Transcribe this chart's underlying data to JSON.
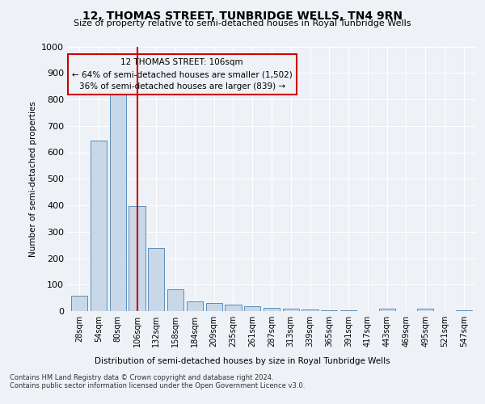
{
  "title": "12, THOMAS STREET, TUNBRIDGE WELLS, TN4 9RN",
  "subtitle": "Size of property relative to semi-detached houses in Royal Tunbridge Wells",
  "xlabel": "Distribution of semi-detached houses by size in Royal Tunbridge Wells",
  "ylabel": "Number of semi-detached properties",
  "footer_line1": "Contains HM Land Registry data © Crown copyright and database right 2024.",
  "footer_line2": "Contains public sector information licensed under the Open Government Licence v3.0.",
  "categories": [
    "28sqm",
    "54sqm",
    "80sqm",
    "106sqm",
    "132sqm",
    "158sqm",
    "184sqm",
    "209sqm",
    "235sqm",
    "261sqm",
    "287sqm",
    "313sqm",
    "339sqm",
    "365sqm",
    "391sqm",
    "417sqm",
    "443sqm",
    "469sqm",
    "495sqm",
    "521sqm",
    "547sqm"
  ],
  "values": [
    57,
    645,
    822,
    397,
    238,
    83,
    37,
    32,
    23,
    17,
    11,
    8,
    7,
    4,
    2,
    0,
    10,
    1,
    10,
    0,
    2
  ],
  "bar_color": "#c8d8e8",
  "bar_edge_color": "#5b8db8",
  "property_label": "12 THOMAS STREET: 106sqm",
  "pct_smaller": 64,
  "pct_larger": 36,
  "count_smaller": 1502,
  "count_larger": 839,
  "vline_color": "#cc0000",
  "annotation_box_color": "#cc0000",
  "ylim": [
    0,
    1000
  ],
  "yticks": [
    0,
    100,
    200,
    300,
    400,
    500,
    600,
    700,
    800,
    900,
    1000
  ],
  "background_color": "#eef2f7",
  "grid_color": "#ffffff",
  "title_fontsize": 10,
  "subtitle_fontsize": 8,
  "vline_bar_index": 3
}
